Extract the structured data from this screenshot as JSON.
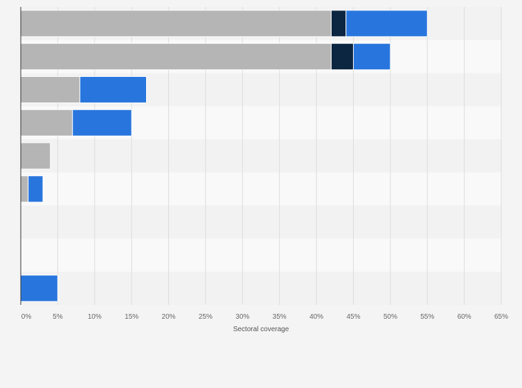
{
  "chart_data": {
    "type": "bar",
    "orientation": "horizontal",
    "stacked": true,
    "categories": [
      "",
      "",
      "",
      "",
      "",
      "",
      "",
      "",
      ""
    ],
    "series": [
      {
        "color": "#b5b5b5",
        "values": [
          42,
          42,
          8,
          7,
          4,
          1,
          0,
          0,
          0
        ]
      },
      {
        "color": "#0c2540",
        "values": [
          2,
          3,
          0,
          0,
          0,
          0,
          0,
          0,
          0
        ]
      },
      {
        "color": "#2876dd",
        "values": [
          11,
          5,
          9,
          8,
          0,
          2,
          0,
          0,
          5
        ]
      }
    ],
    "xlabel": "Sectoral coverage",
    "ylabel": "",
    "xlim": [
      0,
      65
    ],
    "x_ticks": [
      "0%",
      "5%",
      "10%",
      "15%",
      "20%",
      "25%",
      "30%",
      "35%",
      "40%",
      "45%",
      "50%",
      "55%",
      "60%",
      "65%"
    ],
    "grid": true,
    "legend": "none"
  }
}
